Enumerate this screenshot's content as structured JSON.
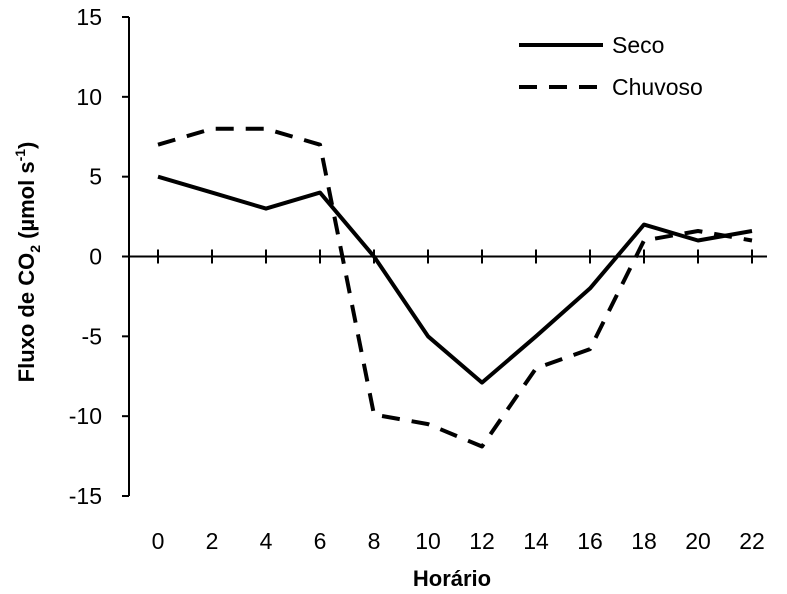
{
  "chart_data": {
    "type": "line",
    "title": "",
    "xlabel": "Horário",
    "ylabel": {
      "prefix": "Fluxo de CO",
      "sub": "2",
      "middle": " (µmol s",
      "sup": "-1",
      "suffix": ")"
    },
    "x": [
      0,
      2,
      4,
      6,
      8,
      10,
      12,
      14,
      16,
      18,
      20,
      22
    ],
    "xlim": [
      -1,
      23
    ],
    "ylim": [
      -15,
      15
    ],
    "yticks": [
      15,
      10,
      5,
      0,
      -5,
      -10,
      -15
    ],
    "xticks": [
      0,
      2,
      4,
      6,
      8,
      10,
      12,
      14,
      16,
      18,
      20,
      22
    ],
    "grid": false,
    "legend_position": "top-right",
    "series": [
      {
        "name": "Seco",
        "style": "solid",
        "color": "#000000",
        "values": [
          5,
          4,
          3,
          4,
          0,
          -5,
          -7.9,
          -5,
          -2,
          2,
          1,
          1.6
        ]
      },
      {
        "name": "Chuvoso",
        "style": "dashed",
        "color": "#000000",
        "values": [
          7,
          8,
          8,
          7,
          -9.9,
          -10.5,
          -11.9,
          -7,
          -5.8,
          1,
          1.6,
          1
        ]
      }
    ]
  }
}
